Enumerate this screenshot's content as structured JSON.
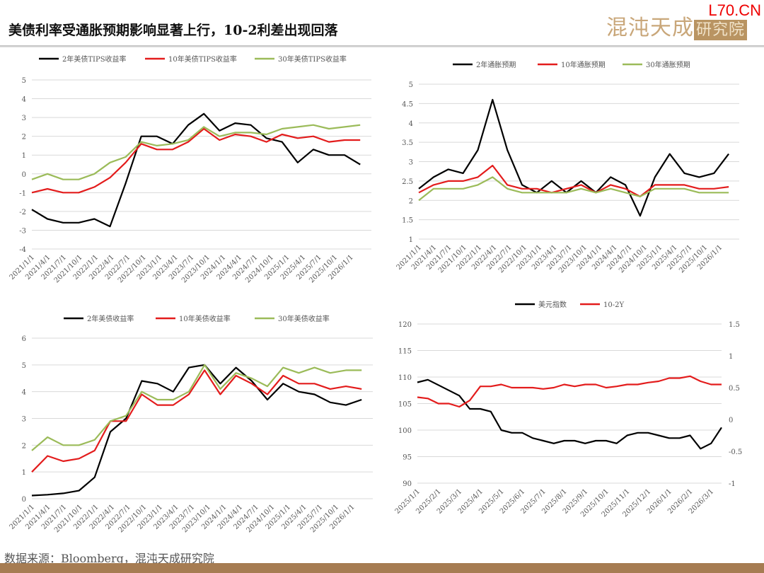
{
  "header": {
    "title": "美债利率受通胀预期影响显著上行，10-2利差出现回落",
    "logo_text": "混沌天成",
    "logo_badge": "研究院",
    "watermark": "L70.CN"
  },
  "footer": {
    "source": "数据来源：Bloomberg，混沌天成研究院"
  },
  "chart_data": [
    {
      "type": "line",
      "title": "",
      "ylim": [
        -4,
        5
      ],
      "yticks": [
        "-4",
        "-3",
        "-2",
        "-1",
        "0",
        "1",
        "2",
        "3",
        "4",
        "5"
      ],
      "xticks": [
        "2021/1/1",
        "2021/4/1",
        "2021/7/1",
        "2021/10/1",
        "2022/1/1",
        "2022/4/1",
        "2022/7/1",
        "2022/10/1",
        "2023/1/1",
        "2023/4/1",
        "2023/7/1",
        "2023/10/1",
        "2024/1/1",
        "2024/4/1",
        "2024/7/1",
        "2024/10/1",
        "2025/1/1",
        "2025/4/1",
        "2025/7/1",
        "2025/10/1",
        "2026/1/1"
      ],
      "series": [
        {
          "name": "2年美债TIPS收益率",
          "color": "#000000",
          "values": [
            -1.9,
            -2.4,
            -2.6,
            -2.6,
            -2.4,
            -2.8,
            -0.5,
            2.0,
            2.0,
            1.6,
            2.6,
            3.2,
            2.3,
            2.7,
            2.6,
            1.9,
            1.7,
            0.6,
            1.3,
            1.0,
            1.0,
            0.5
          ]
        },
        {
          "name": "10年美债TIPS收益率",
          "color": "#e31c1c",
          "values": [
            -1.0,
            -0.8,
            -1.0,
            -1.0,
            -0.7,
            -0.2,
            0.6,
            1.6,
            1.3,
            1.3,
            1.7,
            2.4,
            1.8,
            2.1,
            2.0,
            1.7,
            2.1,
            1.9,
            2.0,
            1.7,
            1.8,
            1.8
          ]
        },
        {
          "name": "30年美债TIPS收益率",
          "color": "#9bbb59",
          "values": [
            -0.3,
            0.0,
            -0.3,
            -0.3,
            0.0,
            0.6,
            0.9,
            1.7,
            1.5,
            1.6,
            1.8,
            2.5,
            2.0,
            2.2,
            2.2,
            2.1,
            2.4,
            2.5,
            2.6,
            2.4,
            2.5,
            2.6
          ]
        }
      ]
    },
    {
      "type": "line",
      "title": "",
      "ylim": [
        1,
        5
      ],
      "yticks": [
        "1",
        "1.5",
        "2",
        "2.5",
        "3",
        "3.5",
        "4",
        "4.5",
        "5"
      ],
      "xticks": [
        "2021/1/1",
        "2021/4/1",
        "2021/7/1",
        "2021/10/1",
        "2022/1/1",
        "2022/4/1",
        "2022/7/1",
        "2022/10/1",
        "2023/1/1",
        "2023/4/1",
        "2023/7/1",
        "2023/10/1",
        "2024/1/1",
        "2024/4/1",
        "2024/7/1",
        "2024/10/1",
        "2025/1/1",
        "2025/4/1",
        "2025/7/1",
        "2025/10/1",
        "2026/1/1"
      ],
      "series": [
        {
          "name": "2年通胀预期",
          "color": "#000000",
          "values": [
            2.3,
            2.6,
            2.8,
            2.7,
            3.3,
            4.6,
            3.3,
            2.4,
            2.2,
            2.5,
            2.2,
            2.5,
            2.2,
            2.6,
            2.4,
            1.6,
            2.6,
            3.2,
            2.7,
            2.6,
            2.7,
            3.2
          ]
        },
        {
          "name": "10年通胀预期",
          "color": "#e31c1c",
          "values": [
            2.2,
            2.4,
            2.5,
            2.5,
            2.6,
            2.9,
            2.4,
            2.3,
            2.3,
            2.2,
            2.3,
            2.4,
            2.2,
            2.4,
            2.3,
            2.1,
            2.4,
            2.4,
            2.4,
            2.3,
            2.3,
            2.35
          ]
        },
        {
          "name": "30年通胀预期",
          "color": "#9bbb59",
          "values": [
            2.0,
            2.3,
            2.3,
            2.3,
            2.4,
            2.6,
            2.3,
            2.2,
            2.2,
            2.2,
            2.2,
            2.3,
            2.2,
            2.3,
            2.2,
            2.1,
            2.3,
            2.3,
            2.3,
            2.2,
            2.2,
            2.2
          ]
        }
      ]
    },
    {
      "type": "line",
      "title": "",
      "ylim": [
        0,
        6
      ],
      "yticks": [
        "0",
        "1",
        "2",
        "3",
        "4",
        "5",
        "6"
      ],
      "xticks": [
        "2021/1/1",
        "2021/4/1",
        "2021/7/1",
        "2021/10/1",
        "2022/1/1",
        "2022/4/1",
        "2022/7/1",
        "2022/10/1",
        "2023/1/1",
        "2023/4/1",
        "2023/7/1",
        "2023/10/1",
        "2024/1/1",
        "2024/4/1",
        "2024/7/1",
        "2024/10/1",
        "2025/1/1",
        "2025/4/1",
        "2025/7/1",
        "2025/10/1",
        "2026/1/1"
      ],
      "series": [
        {
          "name": "2年美债收益率",
          "color": "#000000",
          "values": [
            0.12,
            0.15,
            0.2,
            0.3,
            0.8,
            2.5,
            3.0,
            4.4,
            4.3,
            4.0,
            4.9,
            5.0,
            4.3,
            4.9,
            4.4,
            3.7,
            4.3,
            4.0,
            3.9,
            3.6,
            3.5,
            3.7
          ]
        },
        {
          "name": "10年美债收益率",
          "color": "#e31c1c",
          "values": [
            1.0,
            1.6,
            1.4,
            1.5,
            1.8,
            2.9,
            2.9,
            3.9,
            3.5,
            3.5,
            3.9,
            4.8,
            3.9,
            4.6,
            4.3,
            3.9,
            4.6,
            4.3,
            4.3,
            4.1,
            4.2,
            4.1
          ]
        },
        {
          "name": "30年美债收益率",
          "color": "#9bbb59",
          "values": [
            1.8,
            2.3,
            2.0,
            2.0,
            2.2,
            2.9,
            3.1,
            4.0,
            3.7,
            3.7,
            4.0,
            5.0,
            4.1,
            4.7,
            4.5,
            4.2,
            4.9,
            4.7,
            4.9,
            4.7,
            4.8,
            4.8
          ]
        }
      ]
    },
    {
      "type": "line",
      "title": "",
      "ylim": [
        90,
        120
      ],
      "yticks": [
        "90",
        "95",
        "100",
        "105",
        "110",
        "115",
        "120"
      ],
      "y2lim": [
        -1,
        1.5
      ],
      "y2ticks": [
        "-1",
        "-0.5",
        "0",
        "0.5",
        "1",
        "1.5"
      ],
      "xticks": [
        "2025/1/1",
        "2025/2/1",
        "2025/3/1",
        "2025/4/1",
        "2025/5/1",
        "2025/6/1",
        "2025/7/1",
        "2025/8/1",
        "2025/9/1",
        "2025/10/1",
        "2025/11/1",
        "2025/12/1",
        "2026/1/1",
        "2026/2/1",
        "2026/3/1"
      ],
      "series": [
        {
          "name": "美元指数",
          "color": "#000000",
          "axis": "left",
          "values": [
            109,
            109.5,
            108.5,
            107.5,
            106.5,
            104,
            104,
            103.5,
            100,
            99.5,
            99.5,
            98.5,
            98,
            97.5,
            98,
            98,
            97.5,
            98,
            98,
            97.5,
            99,
            99.5,
            99.5,
            99,
            98.5,
            98.5,
            99,
            96.5,
            97.5,
            100.5
          ]
        },
        {
          "name": "10-2Y",
          "color": "#e31c1c",
          "axis": "right",
          "values": [
            0.35,
            0.33,
            0.25,
            0.25,
            0.2,
            0.3,
            0.52,
            0.52,
            0.55,
            0.5,
            0.5,
            0.5,
            0.48,
            0.5,
            0.55,
            0.52,
            0.55,
            0.55,
            0.5,
            0.52,
            0.55,
            0.55,
            0.58,
            0.6,
            0.65,
            0.65,
            0.68,
            0.6,
            0.55,
            0.55
          ]
        }
      ]
    }
  ]
}
